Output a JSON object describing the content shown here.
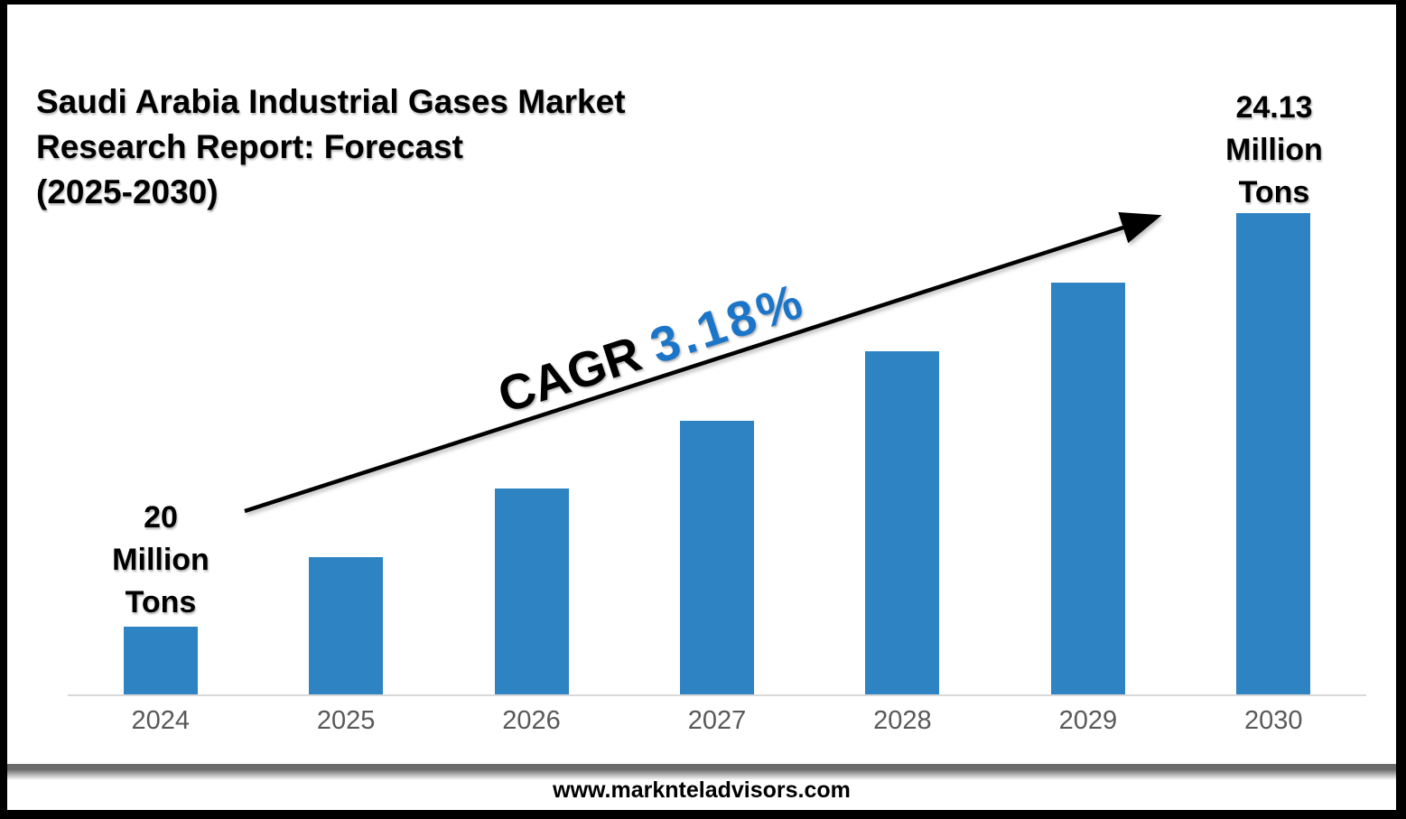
{
  "title": {
    "lines": [
      "Saudi Arabia Industrial Gases Market",
      "Research Report: Forecast",
      "(2025-2030)"
    ]
  },
  "start_label": {
    "lines": [
      "20",
      "Million",
      "Tons"
    ]
  },
  "end_label": {
    "lines": [
      "24.13",
      "Million",
      "Tons"
    ]
  },
  "cagr": {
    "label": "CAGR ",
    "value": "3.18%"
  },
  "footer": {
    "website": "www.marknteladvisors.com"
  },
  "colors": {
    "bar": "#2E83C3",
    "cagr_value": "#1B75C8",
    "axis_line": "#D9D9D9",
    "tick_label": "#595959",
    "arrow": "#000000"
  },
  "chart_data": {
    "type": "bar",
    "title": "Saudi Arabia Industrial Gases Market Research Report: Forecast (2025-2030)",
    "categories": [
      "2024",
      "2025",
      "2026",
      "2027",
      "2028",
      "2029",
      "2030"
    ],
    "values": [
      20,
      20.69,
      21.38,
      22.06,
      22.75,
      23.44,
      24.13
    ],
    "unit": "Million Tons",
    "cagr_percent": 3.18,
    "labeled_points": [
      {
        "category": "2024",
        "label": "20 Million Tons"
      },
      {
        "category": "2030",
        "label": "24.13 Million Tons"
      }
    ],
    "xlabel": "",
    "ylabel": "",
    "legend": "none",
    "grid": false,
    "y_axis_visible": false,
    "baseline_truncated": true
  }
}
